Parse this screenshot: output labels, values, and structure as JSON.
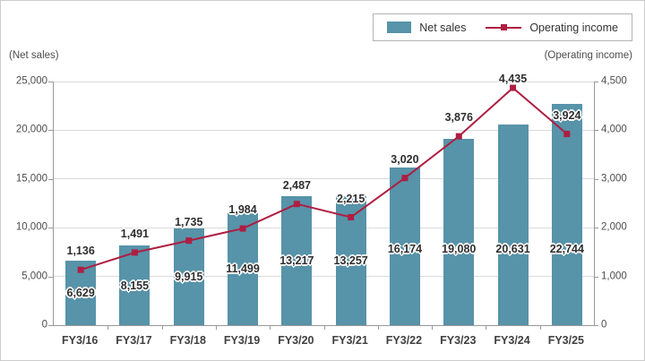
{
  "legend": {
    "net_sales_label": "Net sales",
    "operating_income_label": "Operating income"
  },
  "axis_captions": {
    "left": "(Net sales)",
    "right": "(Operating income)"
  },
  "colors": {
    "bar": "#5793a9",
    "line": "#ae1e42",
    "grid": "#dadada",
    "axis": "#999999"
  },
  "chart_data": {
    "type": "combo (bar + line)",
    "categories": [
      "FY3/16",
      "FY3/17",
      "FY3/18",
      "FY3/19",
      "FY3/20",
      "FY3/21",
      "FY3/22",
      "FY3/23",
      "FY3/24",
      "FY3/25"
    ],
    "series": [
      {
        "name": "Net sales",
        "type": "bar",
        "axis": "left",
        "values": [
          6629,
          8155,
          9915,
          11499,
          13217,
          13257,
          16174,
          19080,
          20631,
          22744
        ],
        "labels": [
          "6,629",
          "8,155",
          "9,915",
          "11,499",
          "13,217",
          "13,257",
          "16,174",
          "19,080",
          "20,631",
          "22,744"
        ]
      },
      {
        "name": "Operating income",
        "type": "line",
        "axis": "right",
        "values": [
          1136,
          1491,
          1735,
          1984,
          2487,
          2215,
          3020,
          3876,
          4435,
          3924
        ],
        "labels": [
          "1,136",
          "1,491",
          "1,735",
          "1,984",
          "2,487",
          "2,215",
          "3,020",
          "3,876",
          "4,435",
          "3,924"
        ]
      }
    ],
    "left_axis": {
      "caption": "(Net sales)",
      "tick_values": [
        0,
        5000,
        10000,
        15000,
        20000,
        25000
      ],
      "tick_labels": [
        "0",
        "5,000",
        "10,000",
        "15,000",
        "20,000",
        "25,000"
      ],
      "min": 0,
      "max": 25000
    },
    "right_axis": {
      "caption": "(Operating income)",
      "tick_values": [
        0,
        1000,
        2000,
        3000,
        4000,
        4500
      ],
      "tick_labels": [
        "0",
        "1,000",
        "2,000",
        "3,000",
        "4,000",
        "4,500"
      ],
      "min": 0,
      "max": 4500,
      "note": "ticks evenly spaced; top tick 4,500 aligns with 25,000 on left axis"
    },
    "grid": true,
    "legend_position": "top-right"
  }
}
